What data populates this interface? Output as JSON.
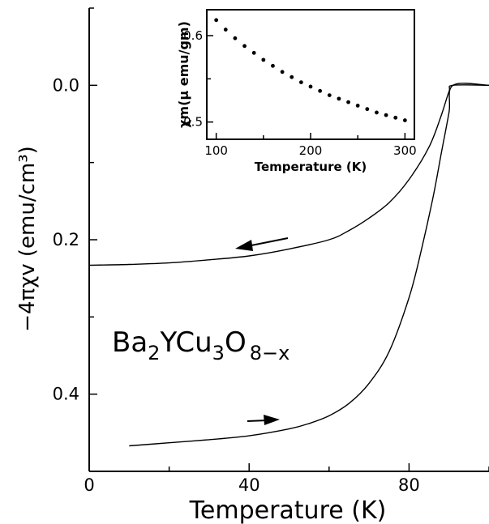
{
  "chart_data": [
    {
      "type": "line",
      "xlabel": "Temperature (K)",
      "ylabel": "−4πχv (emu/cm³)",
      "xlim": [
        0,
        100
      ],
      "ylim": [
        0.5,
        -0.1
      ],
      "y_inverted": true,
      "xticks": [
        0,
        40,
        80
      ],
      "xtick_labels": [
        "0",
        "40",
        "80"
      ],
      "yticks": [
        0.0,
        0.2,
        0.4
      ],
      "ytick_labels": [
        "0.0",
        "0.2",
        "0.4"
      ],
      "annotation": {
        "formula": "Ba2YCu3O8−x",
        "base": "Ba",
        "sub1": "2",
        "mid1": "YCu",
        "sub2": "3",
        "mid2": "O",
        "sub3": "8−x"
      },
      "series": [
        {
          "direction": "cooling",
          "arrow": "left",
          "x": [
            0,
            10,
            20,
            30,
            40,
            50,
            60,
            65,
            70,
            75,
            80,
            85,
            88,
            90,
            91,
            100
          ],
          "y": [
            0.233,
            0.232,
            0.23,
            0.226,
            0.221,
            0.212,
            0.2,
            0.188,
            0.172,
            0.152,
            0.122,
            0.08,
            0.04,
            0.008,
            0.0,
            0.0
          ]
        },
        {
          "direction": "warming",
          "arrow": "right",
          "x": [
            10,
            20,
            30,
            40,
            50,
            55,
            60,
            65,
            70,
            75,
            80,
            83,
            86,
            88,
            90,
            91,
            100
          ],
          "y": [
            0.467,
            0.463,
            0.459,
            0.454,
            0.445,
            0.438,
            0.428,
            0.412,
            0.386,
            0.345,
            0.275,
            0.215,
            0.145,
            0.09,
            0.035,
            0.0,
            0.0
          ]
        }
      ]
    },
    {
      "type": "scatter",
      "xlabel": "Temperature (K)",
      "ylabel": "χm(μ emu/gm)",
      "xlim": [
        90,
        310
      ],
      "ylim": [
        0.48,
        0.63
      ],
      "xticks": [
        100,
        200,
        300
      ],
      "xtick_labels": [
        "100",
        "200",
        "300"
      ],
      "yticks": [
        0.5,
        0.6
      ],
      "ytick_labels": [
        "0.5",
        "0.6"
      ],
      "series": [
        {
          "x": [
            100,
            110,
            120,
            130,
            140,
            150,
            160,
            170,
            180,
            190,
            200,
            210,
            220,
            230,
            240,
            250,
            260,
            270,
            280,
            290,
            300
          ],
          "y": [
            0.618,
            0.607,
            0.597,
            0.588,
            0.58,
            0.572,
            0.565,
            0.558,
            0.552,
            0.546,
            0.541,
            0.536,
            0.531,
            0.527,
            0.523,
            0.519,
            0.515,
            0.511,
            0.508,
            0.505,
            0.502
          ]
        }
      ]
    }
  ]
}
